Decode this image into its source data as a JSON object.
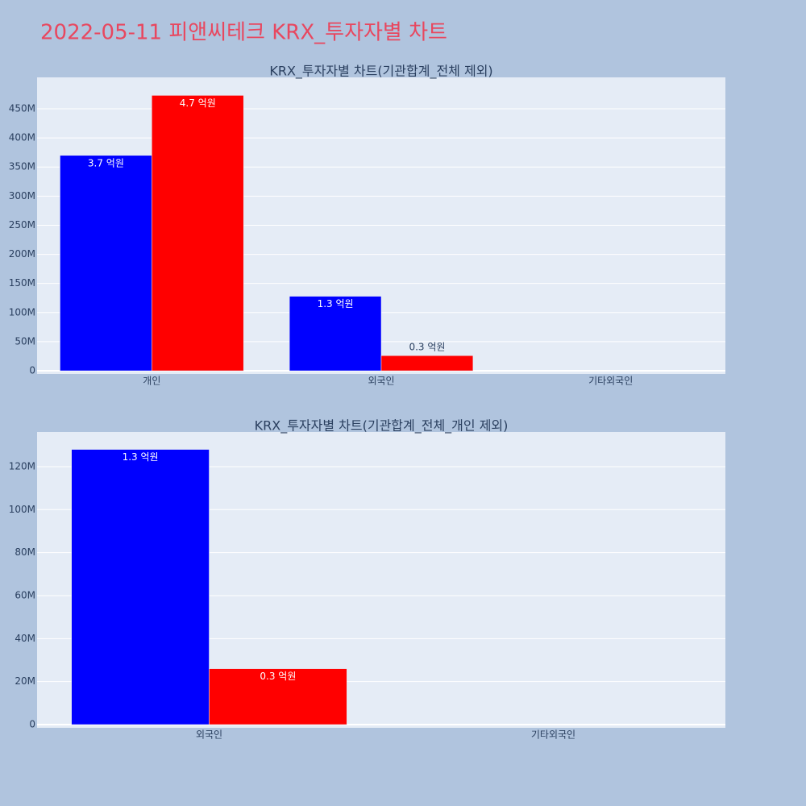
{
  "title": "2022-05-11 피앤씨테크 KRX_투자자별 차트",
  "chart_data": [
    {
      "type": "bar",
      "title": "KRX_투자자별 차트(기관합계_전체 제외)",
      "categories": [
        "개인",
        "외국인",
        "기타외국인"
      ],
      "series": [
        {
          "color": "#0000ff",
          "values": [
            370000000,
            128000000,
            null
          ],
          "value_labels": [
            "3.7 억원",
            "1.3 억원",
            null
          ]
        },
        {
          "color": "#ff0000",
          "values": [
            473000000,
            26000000,
            null
          ],
          "value_labels": [
            "4.7 억원",
            "0.3 억원",
            null
          ]
        }
      ],
      "ylim": [
        -5500000,
        504000000
      ],
      "yticks": [
        0,
        {
          "value": 50000000,
          "label": "50M"
        },
        {
          "value": 100000000,
          "label": "100M"
        },
        {
          "value": 150000000,
          "label": "150M"
        },
        {
          "value": 200000000,
          "label": "200M"
        },
        {
          "value": 250000000,
          "label": "250M"
        },
        {
          "value": 300000000,
          "label": "300M"
        },
        {
          "value": 350000000,
          "label": "350M"
        },
        {
          "value": 400000000,
          "label": "400M"
        },
        {
          "value": 450000000,
          "label": "450M"
        }
      ],
      "grid": true
    },
    {
      "type": "bar",
      "title": "KRX_투자자별 차트(기관합계_전체_개인 제외)",
      "categories": [
        "외국인",
        "기타외국인"
      ],
      "series": [
        {
          "color": "#0000ff",
          "values": [
            128000000,
            null
          ],
          "value_labels": [
            "1.3 억원",
            null
          ]
        },
        {
          "color": "#ff0000",
          "values": [
            26000000,
            null
          ],
          "value_labels": [
            "0.3 억원",
            null
          ]
        }
      ],
      "ylim": [
        -1500000,
        136100000
      ],
      "yticks": [
        0,
        {
          "value": 20000000,
          "label": "20M"
        },
        {
          "value": 40000000,
          "label": "40M"
        },
        {
          "value": 60000000,
          "label": "60M"
        },
        {
          "value": 80000000,
          "label": "80M"
        },
        {
          "value": 100000000,
          "label": "100M"
        },
        {
          "value": 120000000,
          "label": "120M"
        }
      ],
      "grid": true
    }
  ]
}
